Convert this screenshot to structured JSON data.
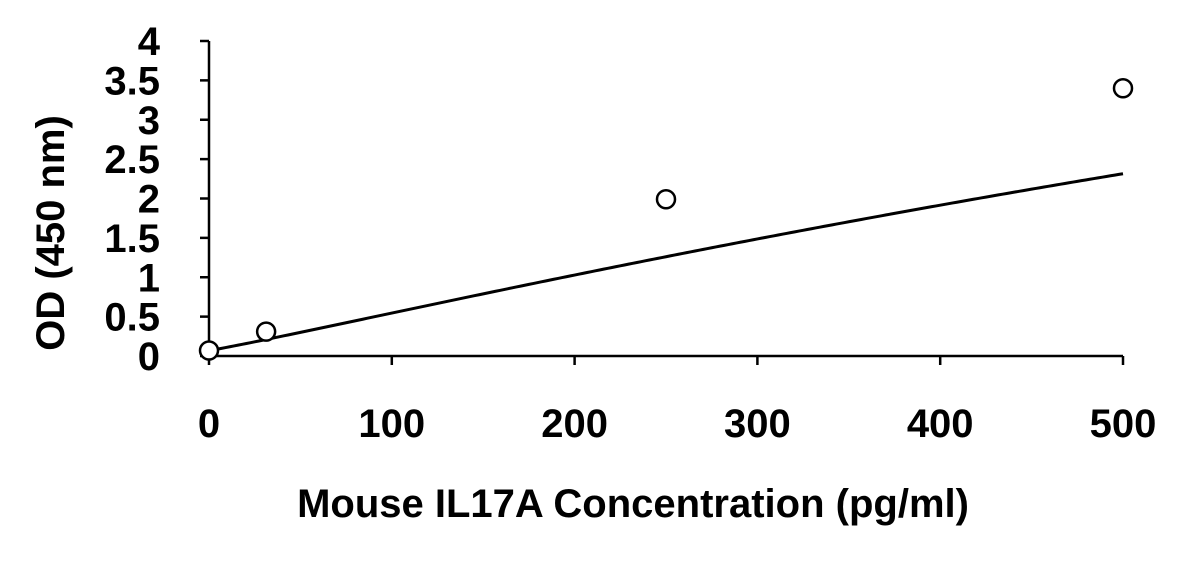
{
  "chart_data": {
    "type": "scatter",
    "title": "",
    "xlabel": "Mouse IL17A Concentration (pg/ml)",
    "ylabel": "OD (450 nm)",
    "xlim": [
      0,
      500
    ],
    "ylim": [
      0,
      4
    ],
    "x_ticks": [
      0,
      100,
      200,
      300,
      400,
      500
    ],
    "y_ticks": [
      0,
      0.5,
      1,
      1.5,
      2,
      2.5,
      3,
      3.5,
      4
    ],
    "x_tick_labels": [
      "0",
      "100",
      "200",
      "300",
      "400",
      "500"
    ],
    "y_tick_labels": [
      "0",
      "0.5",
      "1",
      "1.5",
      "2",
      "2.5",
      "3",
      "3.5",
      "4"
    ],
    "grid": false,
    "legend": "none",
    "series": [
      {
        "points": [
          {
            "x": 0,
            "y": 0.07
          },
          {
            "x": 31.25,
            "y": 0.31
          },
          {
            "x": 250,
            "y": 1.99
          },
          {
            "x": 500,
            "y": 3.4
          }
        ],
        "marker": "open-circle",
        "trendline": "smooth curve fit",
        "color": "#000000"
      }
    ]
  }
}
